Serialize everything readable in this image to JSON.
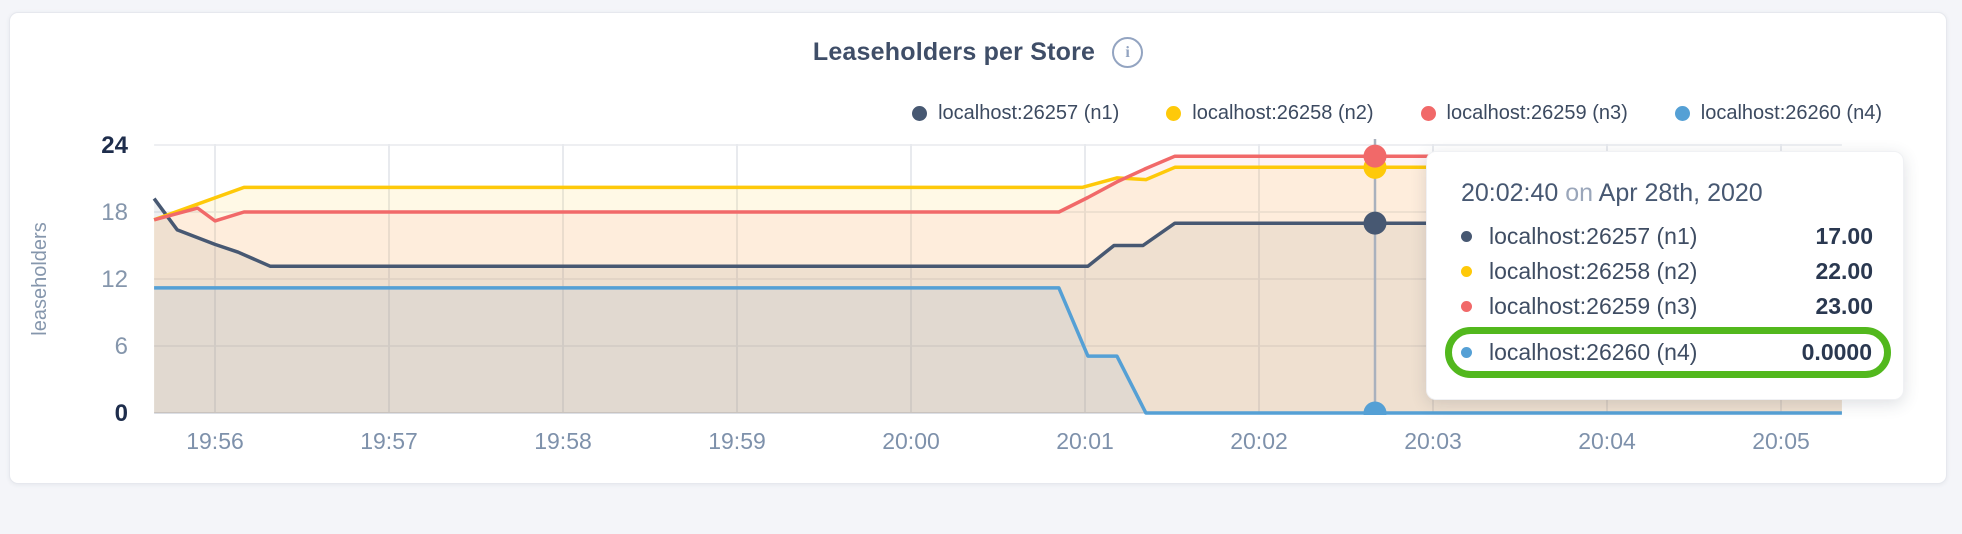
{
  "page": {
    "background": "#f4f5f9"
  },
  "chart": {
    "title": "Leaseholders per Store",
    "info_icon_glyph": "i",
    "ylabel": "leaseholders"
  },
  "chart_data": {
    "type": "area",
    "title": "Leaseholders per Store",
    "xlabel": "",
    "ylabel": "leaseholders",
    "ylim": [
      0,
      24
    ],
    "y_ticks": [
      0,
      6,
      12,
      18,
      24
    ],
    "y_ticks_bold": [
      0,
      24
    ],
    "x_tick_labels": [
      "19:56",
      "19:57",
      "19:58",
      "19:59",
      "20:00",
      "20:01",
      "20:02",
      "20:03",
      "20:04",
      "20:05"
    ],
    "x_tick_seconds": [
      0,
      60,
      120,
      180,
      240,
      300,
      360,
      420,
      480,
      540
    ],
    "x_seconds_origin": "19:56:00",
    "x_range_seconds": [
      -21,
      561
    ],
    "grid": true,
    "legend_position": "top-right",
    "series": [
      {
        "name": "localhost:26257 (n1)",
        "color": "#475872",
        "fill_opacity": 0.09,
        "points": [
          [
            -21,
            19.2
          ],
          [
            -13,
            16.4
          ],
          [
            0,
            15.1
          ],
          [
            8,
            14.4
          ],
          [
            19,
            13.15
          ],
          [
            301,
            13.15
          ],
          [
            310,
            15
          ],
          [
            320,
            15
          ],
          [
            331,
            17
          ],
          [
            561,
            17
          ]
        ]
      },
      {
        "name": "localhost:26258 (n2)",
        "color": "#fec909",
        "fill_opacity": 0.1,
        "points": [
          [
            -21,
            17.3
          ],
          [
            10,
            20.2
          ],
          [
            299,
            20.2
          ],
          [
            311,
            21.05
          ],
          [
            321,
            20.9
          ],
          [
            331,
            22
          ],
          [
            561,
            22
          ]
        ]
      },
      {
        "name": "localhost:26259 (n3)",
        "color": "#f16969",
        "fill_opacity": 0.08,
        "points": [
          [
            -21,
            17.3
          ],
          [
            -6,
            18.35
          ],
          [
            0,
            17.2
          ],
          [
            10,
            18
          ],
          [
            291,
            18
          ],
          [
            301,
            19.3
          ],
          [
            311,
            20.7
          ],
          [
            321,
            21.9
          ],
          [
            331,
            23
          ],
          [
            561,
            23
          ]
        ]
      },
      {
        "name": "localhost:26260 (n4)",
        "color": "#55a0d5",
        "fill_opacity": 0.09,
        "points": [
          [
            -21,
            11.2
          ],
          [
            291,
            11.2
          ],
          [
            301,
            5.1
          ],
          [
            311,
            5.1
          ],
          [
            321,
            0
          ],
          [
            561,
            0
          ]
        ]
      }
    ],
    "hover": {
      "time_seconds": 400,
      "time_label": "20:02:40",
      "values": [
        17,
        22,
        23,
        0
      ]
    }
  },
  "legend": {
    "items": [
      {
        "label": "localhost:26257 (n1)",
        "color": "#475872"
      },
      {
        "label": "localhost:26258 (n2)",
        "color": "#fec909"
      },
      {
        "label": "localhost:26259 (n3)",
        "color": "#f16969"
      },
      {
        "label": "localhost:26260 (n4)",
        "color": "#55a0d5"
      }
    ]
  },
  "tooltip": {
    "time": "20:02:40",
    "on_word": "on",
    "date": "Apr 28th, 2020",
    "rows": [
      {
        "label": "localhost:26257 (n1)",
        "color": "#475872",
        "value": "17.00",
        "highlighted": false
      },
      {
        "label": "localhost:26258 (n2)",
        "color": "#fec909",
        "value": "22.00",
        "highlighted": false
      },
      {
        "label": "localhost:26259 (n3)",
        "color": "#f16969",
        "value": "23.00",
        "highlighted": false
      },
      {
        "label": "localhost:26260 (n4)",
        "color": "#55a0d5",
        "value": "0.0000",
        "highlighted": true
      }
    ],
    "highlight_color": "#52b81d"
  },
  "axis_colors": {
    "tick_light": "#8596ac",
    "tick_bold": "#1e2d4c",
    "x_tick": "#7e91ab",
    "gridline": "#e8eaee",
    "baseline": "#dcdfe5",
    "hover_line": "#a9b1bd"
  }
}
